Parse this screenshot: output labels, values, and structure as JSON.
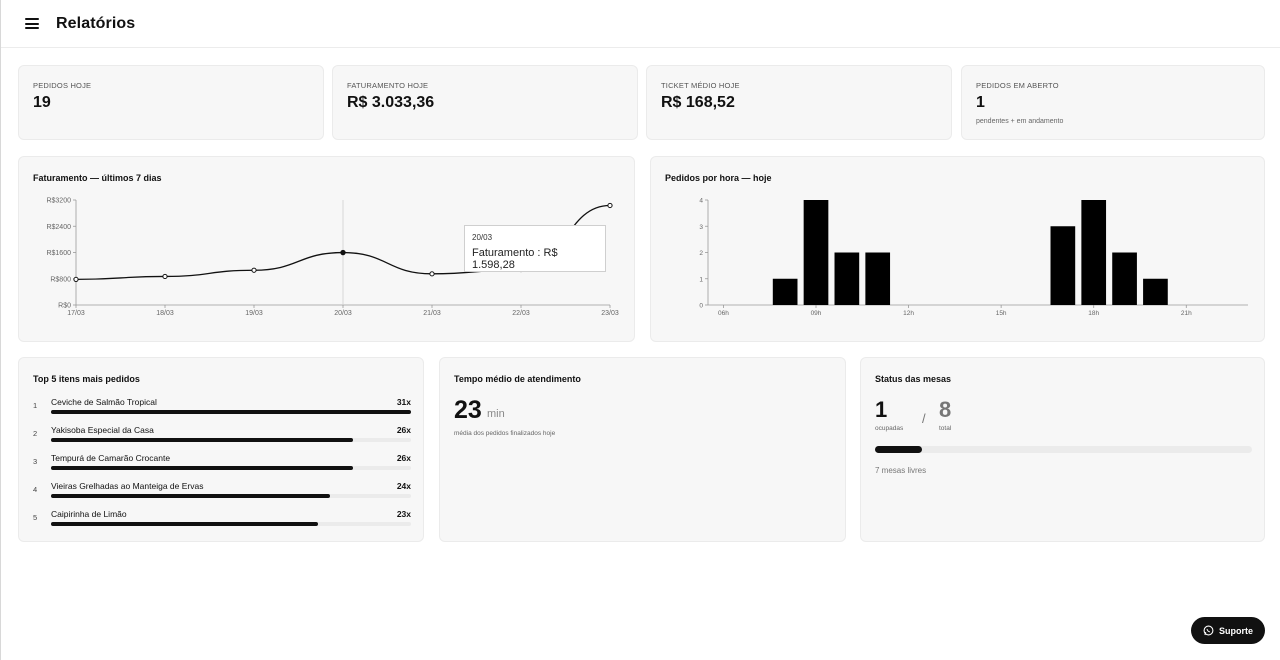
{
  "header": {
    "title": "Relatórios",
    "menu_icon": "menu-icon"
  },
  "kpis": [
    {
      "label": "PEDIDOS HOJE",
      "value": "19",
      "sub": ""
    },
    {
      "label": "FATURAMENTO HOJE",
      "value": "R$ 3.033,36",
      "sub": ""
    },
    {
      "label": "TICKET MÉDIO HOJE",
      "value": "R$ 168,52",
      "sub": ""
    },
    {
      "label": "PEDIDOS EM ABERTO",
      "value": "1",
      "sub": "pendentes + em andamento"
    }
  ],
  "revenue_card": {
    "title": "Faturamento — últimos 7 dias"
  },
  "hourly_card": {
    "title": "Pedidos por hora — hoje"
  },
  "chart_data": [
    {
      "type": "line",
      "title": "Faturamento — últimos 7 dias",
      "categories": [
        "17/03",
        "18/03",
        "19/03",
        "20/03",
        "21/03",
        "22/03",
        "23/03"
      ],
      "values": [
        780,
        870,
        1060,
        1598.28,
        950,
        1080,
        3033.36
      ],
      "yticks": [
        "R$0",
        "R$800",
        "R$1600",
        "R$2400",
        "R$3200"
      ],
      "ylim": [
        0,
        3200
      ],
      "series_name": "Faturamento",
      "tooltip": {
        "date": "20/03",
        "text": "Faturamento : R$ 1.598,28"
      },
      "active_index": 3
    },
    {
      "type": "bar",
      "title": "Pedidos por hora — hoje",
      "hours": [
        8,
        9,
        10,
        11,
        17,
        18,
        19,
        20
      ],
      "values": [
        1,
        4,
        2,
        2,
        3,
        4,
        2,
        1
      ],
      "xlim": [
        5.5,
        23
      ],
      "xticks": [
        {
          "hour": 6,
          "label": "06h"
        },
        {
          "hour": 9,
          "label": "09h"
        },
        {
          "hour": 12,
          "label": "12h"
        },
        {
          "hour": 15,
          "label": "15h"
        },
        {
          "hour": 18,
          "label": "18h"
        },
        {
          "hour": 21,
          "label": "21h"
        }
      ],
      "yticks": [
        "0",
        "1",
        "2",
        "3",
        "4"
      ],
      "ylim": [
        0,
        4
      ]
    }
  ],
  "top_items": {
    "title": "Top 5 itens mais pedidos",
    "max": 31,
    "items": [
      {
        "rank": "1",
        "name": "Ceviche de Salmão Tropical",
        "count": 31,
        "count_label": "31x"
      },
      {
        "rank": "2",
        "name": "Yakisoba Especial da Casa",
        "count": 26,
        "count_label": "26x"
      },
      {
        "rank": "3",
        "name": "Tempurá de Camarão Crocante",
        "count": 26,
        "count_label": "26x"
      },
      {
        "rank": "4",
        "name": "Vieiras Grelhadas ao Manteiga de Ervas",
        "count": 24,
        "count_label": "24x"
      },
      {
        "rank": "5",
        "name": "Caipirinha de Limão",
        "count": 23,
        "count_label": "23x"
      }
    ]
  },
  "avg_time": {
    "title": "Tempo médio de atendimento",
    "value": "23",
    "unit": "min",
    "note": "média dos pedidos finalizados hoje"
  },
  "tables": {
    "title": "Status das mesas",
    "occupied": "1",
    "occupied_label": "ocupadas",
    "separator": "/",
    "total": "8",
    "total_label": "total",
    "occupancy_fraction": 0.125,
    "free_text": "7 mesas livres"
  },
  "support": {
    "label": "Suporte",
    "icon": "whatsapp-icon"
  }
}
